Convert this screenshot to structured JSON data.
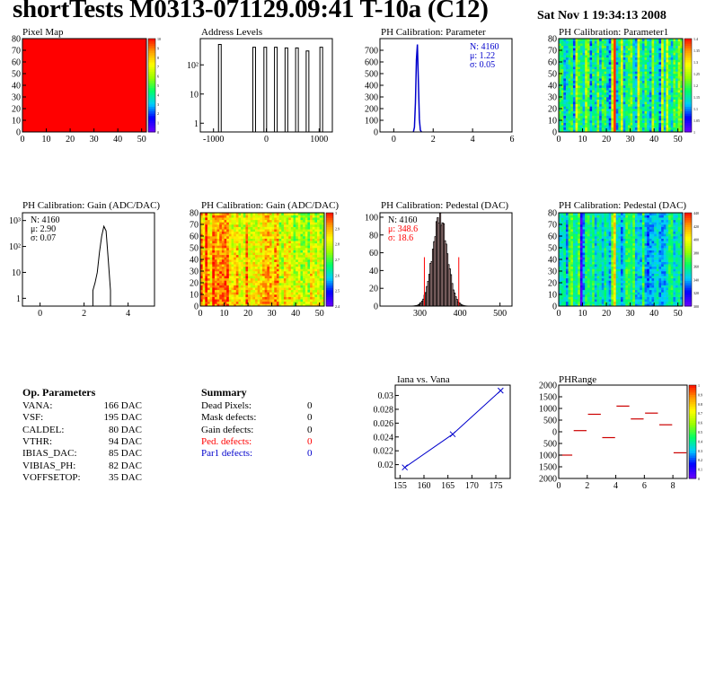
{
  "header": {
    "title": "shortTests M0313-071129.09:41 T-10a (C12)",
    "date": "Sat Nov  1 19:34:13 2008"
  },
  "colors": {
    "red": "#ff0000",
    "blue": "#0000cc",
    "darkred": "#cc0000",
    "palette_stops": [
      "#6600ff",
      "#0000ff",
      "#00ccff",
      "#00ff66",
      "#99ff00",
      "#ffff00",
      "#ff9900",
      "#ff0000"
    ]
  },
  "op_params": {
    "heading": "Op. Parameters",
    "rows": [
      {
        "name": "VANA:",
        "value": "166 DAC"
      },
      {
        "name": "VSF:",
        "value": "195 DAC"
      },
      {
        "name": "CALDEL:",
        "value": "80 DAC"
      },
      {
        "name": "VTHR:",
        "value": "94 DAC"
      },
      {
        "name": "IBIAS_DAC:",
        "value": "85 DAC"
      },
      {
        "name": "VIBIAS_PH:",
        "value": "82 DAC"
      },
      {
        "name": "VOFFSETOP:",
        "value": "35 DAC"
      }
    ]
  },
  "summary": {
    "heading": "Summary",
    "rows": [
      {
        "name": "Dead Pixels:",
        "value": "0",
        "color": "#000000"
      },
      {
        "name": "Mask defects:",
        "value": "0",
        "color": "#000000"
      },
      {
        "name": "Gain defects:",
        "value": "0",
        "color": "#000000"
      },
      {
        "name": "Ped. defects:",
        "value": "0",
        "color": "#ff0000"
      },
      {
        "name": "Par1 defects:",
        "value": "0",
        "color": "#0000cc"
      }
    ]
  },
  "chart_data": [
    {
      "id": "pixel-map",
      "type": "heatmap",
      "title": "Pixel Map",
      "xlim": [
        0,
        52
      ],
      "ylim": [
        0,
        80
      ],
      "xticks": [
        "0",
        "10",
        "20",
        "30",
        "40",
        "50"
      ],
      "xtick_values": [
        0,
        10,
        20,
        30,
        40,
        50
      ],
      "yticks": [
        "0",
        "10",
        "20",
        "30",
        "40",
        "50",
        "60",
        "70",
        "80"
      ],
      "ytick_values": [
        0,
        10,
        20,
        30,
        40,
        50,
        60,
        70,
        80
      ],
      "fill": "#ff0000",
      "palette_labels": [
        "10",
        "9",
        "8",
        "7",
        "6",
        "5",
        "4",
        "3",
        "2",
        "1",
        "0"
      ]
    },
    {
      "id": "address-levels",
      "type": "histogram",
      "title": "Address Levels",
      "log_y": true,
      "xlim": [
        -1250,
        1250
      ],
      "xticks": [
        "-1000",
        "0",
        "1000"
      ],
      "xtick_values": [
        -1000,
        0,
        1000
      ],
      "yticks": [
        "1",
        "10",
        "10²"
      ],
      "ytick_values": [
        1,
        10,
        100
      ],
      "peaks": [
        {
          "x": -880,
          "y": 500
        },
        {
          "x": -230,
          "y": 400
        },
        {
          "x": -20,
          "y": 400
        },
        {
          "x": 180,
          "y": 400
        },
        {
          "x": 380,
          "y": 380
        },
        {
          "x": 580,
          "y": 380
        },
        {
          "x": 780,
          "y": 300
        },
        {
          "x": 1040,
          "y": 400
        }
      ]
    },
    {
      "id": "ph-calib-parameter",
      "type": "histogram",
      "title": "PH Calibration: Parameter",
      "xlim": [
        -0.7,
        6
      ],
      "ylim": [
        0,
        800
      ],
      "xticks": [
        "0",
        "2",
        "4",
        "6"
      ],
      "xtick_values": [
        0,
        2,
        4,
        6
      ],
      "yticks": [
        "0",
        "100",
        "200",
        "300",
        "400",
        "500",
        "600",
        "700"
      ],
      "ytick_values": [
        0,
        100,
        200,
        300,
        400,
        500,
        600,
        700
      ],
      "peak_x": [
        1.0,
        1.05,
        1.1,
        1.15,
        1.2,
        1.25,
        1.3,
        1.35,
        1.4
      ],
      "peak_y": [
        3,
        40,
        250,
        620,
        750,
        430,
        110,
        15,
        2
      ],
      "stats": [
        "N: 4160",
        "μ: 1.22",
        "σ: 0.05"
      ]
    },
    {
      "id": "ph-calib-parameter1",
      "type": "heatmap",
      "title": "PH Calibration: Parameter1",
      "xlim": [
        0,
        52
      ],
      "ylim": [
        0,
        80
      ],
      "xticks": [
        "0",
        "10",
        "20",
        "30",
        "40",
        "50"
      ],
      "xtick_values": [
        0,
        10,
        20,
        30,
        40,
        50
      ],
      "yticks": [
        "0",
        "10",
        "20",
        "30",
        "40",
        "50",
        "60",
        "70",
        "80"
      ],
      "ytick_values": [
        0,
        10,
        20,
        30,
        40,
        50,
        60,
        70,
        80
      ],
      "palette_labels": [
        "1.4",
        "1.35",
        "1.3",
        "1.25",
        "1.2",
        "1.15",
        "1.1",
        "1.05",
        "1"
      ],
      "pattern": "striped",
      "hot_columns": [
        23
      ]
    },
    {
      "id": "ph-calib-gain-hist",
      "type": "histogram",
      "title": "PH Calibration: Gain (ADC/DAC)",
      "log_y": true,
      "xlim": [
        -0.8,
        5.2
      ],
      "xticks": [
        "0",
        "2",
        "4"
      ],
      "xtick_values": [
        0,
        2,
        4
      ],
      "yticks": [
        "1",
        "10",
        "10²",
        "10³"
      ],
      "ytick_values": [
        1,
        10,
        100,
        1000
      ],
      "peak_x": [
        2.4,
        2.5,
        2.6,
        2.7,
        2.8,
        2.9,
        3.0,
        3.1,
        3.2
      ],
      "peak_y": [
        2,
        4,
        10,
        60,
        250,
        600,
        400,
        30,
        2
      ],
      "stats": [
        "N: 4160",
        "μ: 2.90",
        "σ: 0.07"
      ]
    },
    {
      "id": "ph-calib-gain-map",
      "type": "heatmap",
      "title": "PH Calibration: Gain (ADC/DAC)",
      "xlim": [
        0,
        52
      ],
      "ylim": [
        0,
        80
      ],
      "xticks": [
        "0",
        "10",
        "20",
        "30",
        "40",
        "50"
      ],
      "xtick_values": [
        0,
        10,
        20,
        30,
        40,
        50
      ],
      "yticks": [
        "0",
        "10",
        "20",
        "30",
        "40",
        "50",
        "60",
        "70",
        "80"
      ],
      "ytick_values": [
        0,
        10,
        20,
        30,
        40,
        50,
        60,
        70,
        80
      ],
      "palette_labels": [
        "3",
        "2.9",
        "2.8",
        "2.7",
        "2.6",
        "2.5",
        "2.4"
      ],
      "pattern": "gain"
    },
    {
      "id": "ph-calib-pedestal-hist",
      "type": "histogram",
      "title": "PH Calibration: Pedestal (DAC)",
      "xlim": [
        200,
        530
      ],
      "ylim": [
        0,
        105
      ],
      "xticks": [
        "300",
        "400",
        "500"
      ],
      "xtick_values": [
        300,
        400,
        500
      ],
      "yticks": [
        "0",
        "20",
        "40",
        "60",
        "80",
        "100"
      ],
      "ytick_values": [
        0,
        20,
        40,
        60,
        80,
        100
      ],
      "mean": 348.6,
      "sigma": 18.6,
      "peak": 98,
      "cut_lines": [
        311,
        397
      ],
      "stats": [
        "N: 4160",
        "μ: 348.6",
        "σ: 18.6"
      ]
    },
    {
      "id": "ph-calib-pedestal-map",
      "type": "heatmap",
      "title": "PH Calibration: Pedestal (DAC)",
      "xlim": [
        0,
        52
      ],
      "ylim": [
        0,
        80
      ],
      "xticks": [
        "0",
        "10",
        "20",
        "30",
        "40",
        "50"
      ],
      "xtick_values": [
        0,
        10,
        20,
        30,
        40,
        50
      ],
      "yticks": [
        "0",
        "10",
        "20",
        "30",
        "40",
        "50",
        "60",
        "70",
        "80"
      ],
      "ytick_values": [
        0,
        10,
        20,
        30,
        40,
        50,
        60,
        70,
        80
      ],
      "palette_labels": [
        "440",
        "420",
        "400",
        "380",
        "360",
        "340",
        "320",
        "300"
      ],
      "pattern": "pedestal"
    },
    {
      "id": "iana-vs-vana",
      "type": "line",
      "title": "Iana vs. Vana",
      "xlim": [
        154,
        178
      ],
      "ylim": [
        0.018,
        0.0315
      ],
      "xticks": [
        "155",
        "160",
        "165",
        "170",
        "175"
      ],
      "xtick_values": [
        155,
        160,
        165,
        170,
        175
      ],
      "yticks": [
        "0.02",
        "0.022",
        "0.024",
        "0.026",
        "0.028",
        "0.03"
      ],
      "ytick_values": [
        0.02,
        0.022,
        0.024,
        0.026,
        0.028,
        0.03
      ],
      "x": [
        156,
        166,
        176
      ],
      "y": [
        0.0196,
        0.0244,
        0.0307
      ]
    },
    {
      "id": "phrange",
      "type": "scatter",
      "title": "PHRange",
      "xlim": [
        0,
        9
      ],
      "ylim": [
        -2000,
        2000
      ],
      "xticks": [
        "0",
        "2",
        "4",
        "6",
        "8"
      ],
      "xtick_values": [
        0,
        2,
        4,
        6,
        8
      ],
      "yticks": [
        "2000",
        "1500",
        "1000",
        "500",
        "0",
        "500",
        "1000",
        "1500",
        "2000"
      ],
      "ytick_values": [
        2000,
        1500,
        1000,
        500,
        0,
        -500,
        -1000,
        -1500,
        -2000
      ],
      "palette_labels": [
        "1",
        "0.9",
        "0.8",
        "0.7",
        "0.6",
        "0.5",
        "0.4",
        "0.3",
        "0.2",
        "0.1",
        "0"
      ],
      "x": [
        0.5,
        1.5,
        2.5,
        3.5,
        4.5,
        5.5,
        6.5,
        7.5,
        8.5
      ],
      "y": [
        -1000,
        50,
        750,
        -250,
        1100,
        550,
        800,
        300,
        -900
      ]
    }
  ]
}
